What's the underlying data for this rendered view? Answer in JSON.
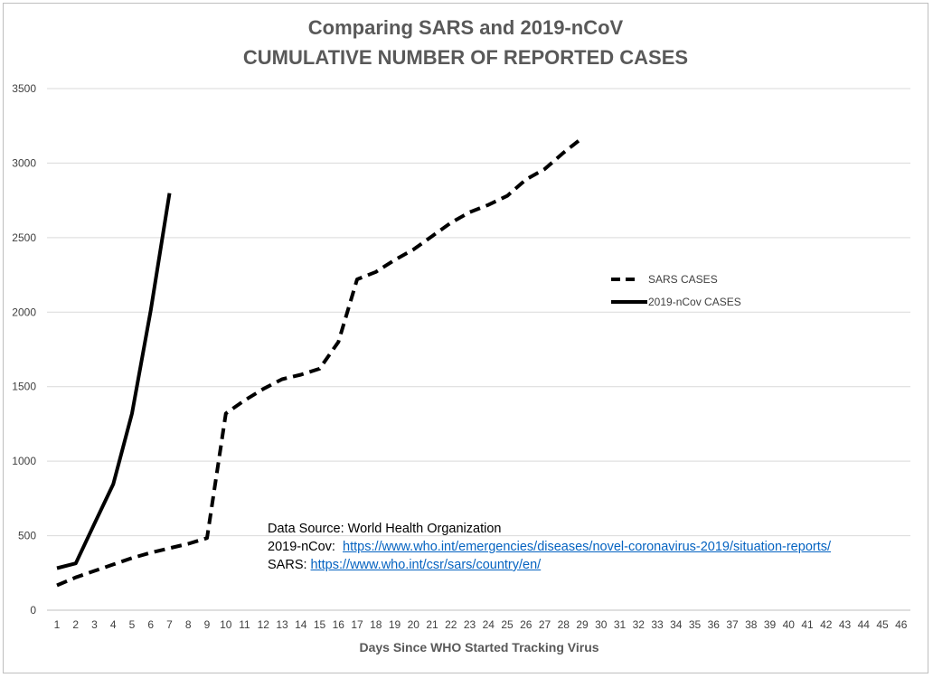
{
  "chart_data": {
    "type": "line",
    "title": "Comparing SARS and 2019-nCoV",
    "subtitle": "CUMULATIVE NUMBER OF REPORTED CASES",
    "xlabel": "Days Since WHO Started Tracking Virus",
    "ylabel": "",
    "x": [
      1,
      2,
      3,
      4,
      5,
      6,
      7,
      8,
      9,
      10,
      11,
      12,
      13,
      14,
      15,
      16,
      17,
      18,
      19,
      20,
      21,
      22,
      23,
      24,
      25,
      26,
      27,
      28,
      29,
      30,
      31,
      32,
      33,
      34,
      35,
      36,
      37,
      38,
      39,
      40,
      41,
      42,
      43,
      44,
      45,
      46
    ],
    "ylim": [
      0,
      3500
    ],
    "yticks": [
      0,
      500,
      1000,
      1500,
      2000,
      2500,
      3000,
      3500
    ],
    "grid": true,
    "legend_position": "right",
    "series": [
      {
        "name": "SARS CASES",
        "style": "dashed",
        "color": "#000000",
        "x": [
          1,
          2,
          3,
          4,
          5,
          6,
          7,
          8,
          9,
          10,
          11,
          12,
          13,
          14,
          15,
          16,
          17,
          18,
          19,
          20,
          21,
          22,
          23,
          24,
          25,
          26,
          27,
          28,
          29
        ],
        "values": [
          167,
          220,
          264,
          307,
          350,
          386,
          416,
          446,
          484,
          1320,
          1408,
          1485,
          1550,
          1580,
          1620,
          1800,
          2220,
          2270,
          2350,
          2420,
          2510,
          2600,
          2670,
          2720,
          2780,
          2890,
          2960,
          3070,
          3169
        ]
      },
      {
        "name": "2019-nCov CASES",
        "style": "solid",
        "color": "#000000",
        "x": [
          1,
          2,
          3,
          4,
          5,
          6,
          7
        ],
        "values": [
          282,
          314,
          581,
          846,
          1320,
          2014,
          2798
        ]
      }
    ]
  },
  "source_note": {
    "line1": "Data Source: World Health Organization",
    "ncov_label": "2019-nCov:  ",
    "ncov_url": "https://www.who.int/emergencies/diseases/novel-coronavirus-2019/situation-reports/",
    "sars_label": "SARS: ",
    "sars_url": "https://www.who.int/csr/sars/country/en/"
  }
}
